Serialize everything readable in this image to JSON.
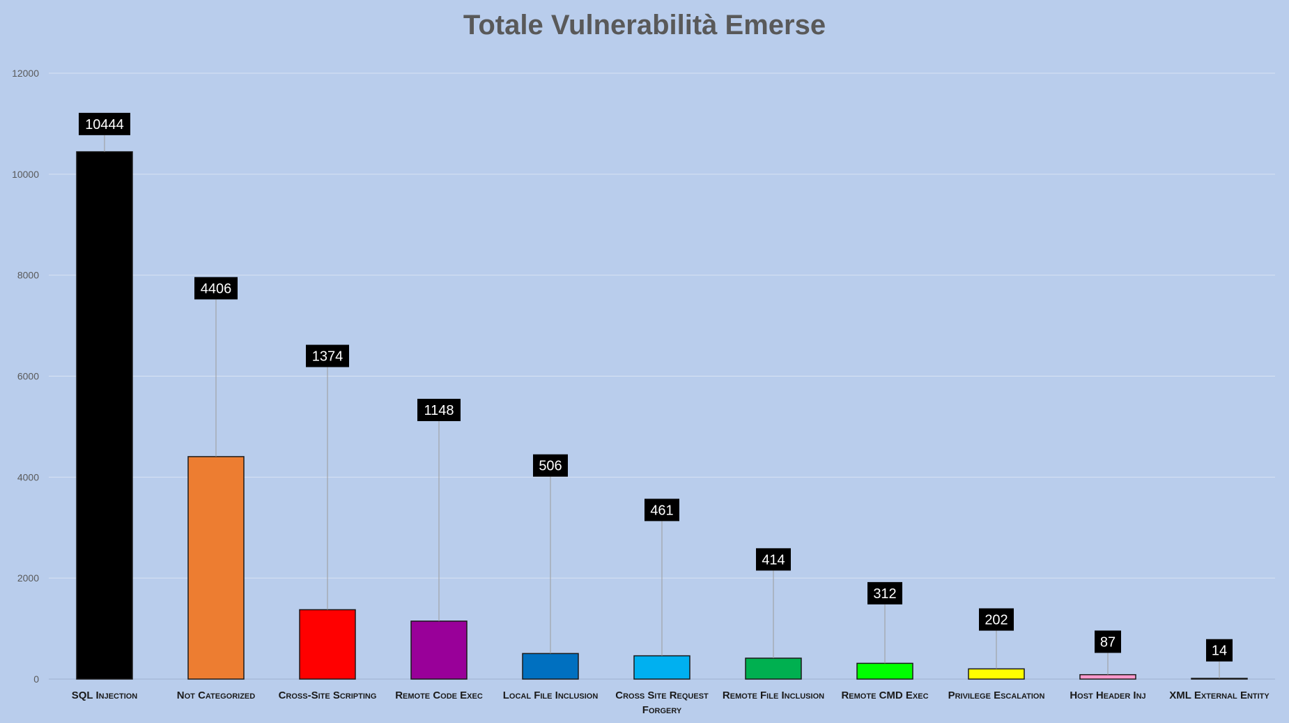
{
  "chart_data": {
    "type": "bar",
    "title": "Totale Vulnerabilità Emerse",
    "xlabel": "",
    "ylabel": "",
    "ylim": [
      0,
      12000
    ],
    "yticks": [
      0,
      2000,
      4000,
      6000,
      8000,
      10000,
      12000
    ],
    "grid": true,
    "legend": "none",
    "categories": [
      "SQL Injection",
      "Not Categorized",
      "Cross-Site Scripting",
      "Remote Code Exec",
      "Local File Inclusion",
      "Cross Site Request Forgery",
      "Remote File Inclusion",
      "Remote CMD Exec",
      "Privilege Escalation",
      "Host Header Inj",
      "XML External Entity"
    ],
    "values": [
      10444,
      4406,
      1374,
      1148,
      506,
      461,
      414,
      312,
      202,
      87,
      14
    ],
    "colors": [
      "#000000",
      "#ed7d31",
      "#ff0000",
      "#990099",
      "#0070c0",
      "#00b0f0",
      "#00b050",
      "#00ff00",
      "#ffff00",
      "#ff99cc",
      "#808080"
    ],
    "label_y": [
      10994,
      7741,
      6400,
      5330,
      4230,
      3350,
      2370,
      1700,
      1180,
      740,
      570
    ]
  }
}
